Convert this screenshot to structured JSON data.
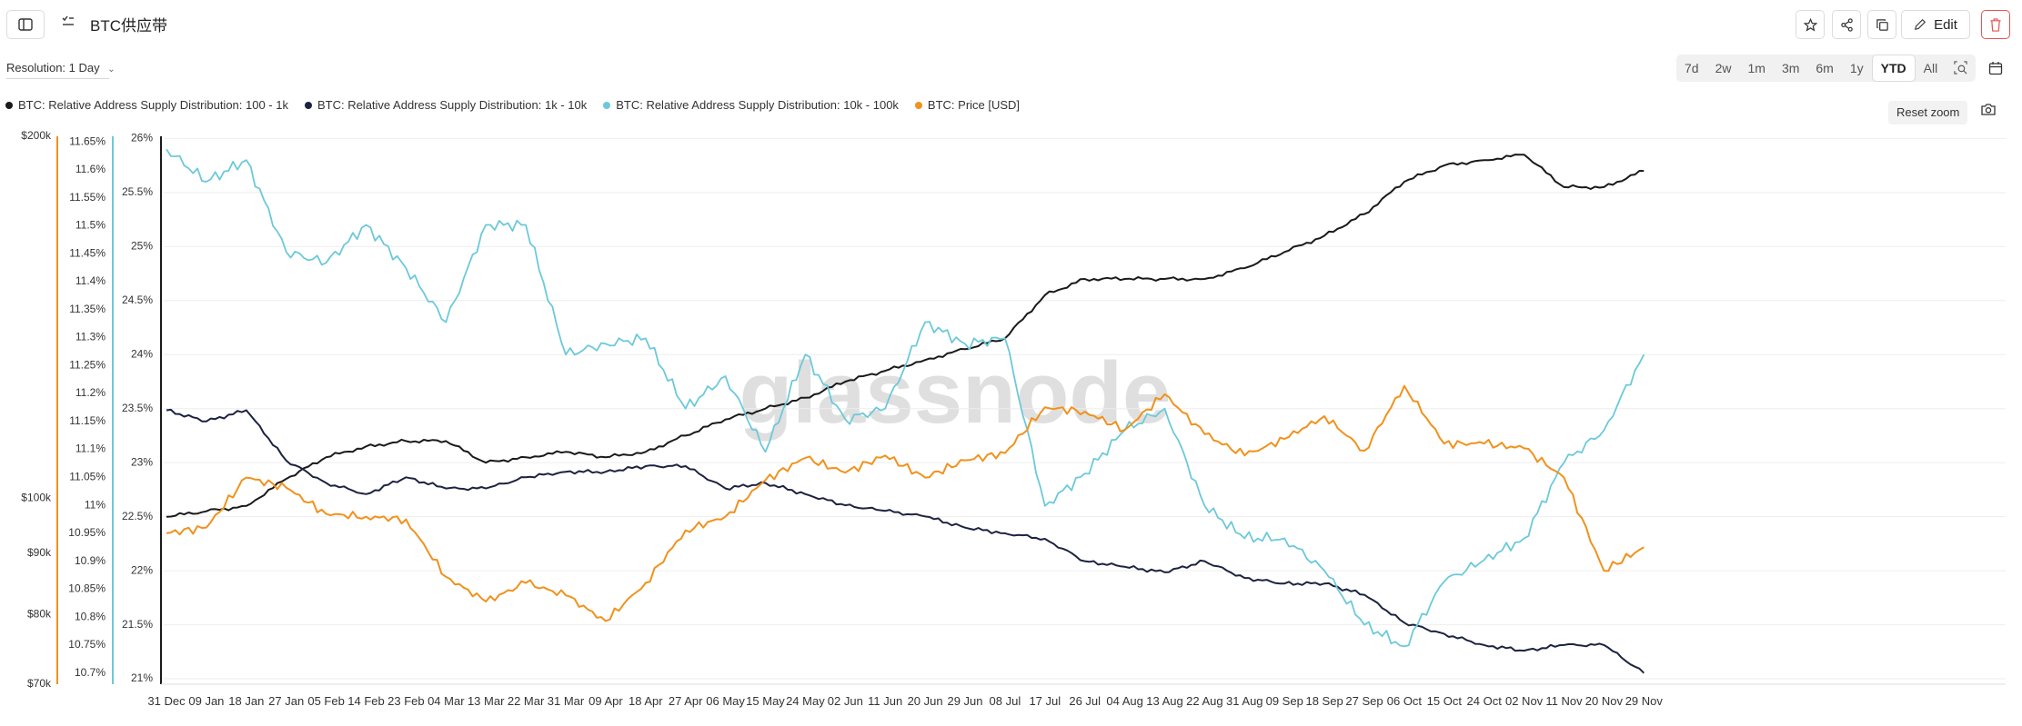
{
  "header": {
    "title": "BTC供应带",
    "edit_label": "Edit"
  },
  "toolbar": {
    "resolution_label": "Resolution: 1 Day",
    "ranges": [
      "7d",
      "2w",
      "1m",
      "3m",
      "6m",
      "1y",
      "YTD",
      "All"
    ],
    "active_range": "YTD",
    "reset_zoom_label": "Reset zoom"
  },
  "legend": [
    {
      "name": "BTC: Relative Address Supply Distribution: 100 - 1k",
      "color": "#1a1a1a"
    },
    {
      "name": "BTC: Relative Address Supply Distribution: 1k - 10k",
      "color": "#1c2340"
    },
    {
      "name": "BTC: Relative Address Supply Distribution: 10k - 100k",
      "color": "#6cc9da"
    },
    {
      "name": "BTC: Price [USD]",
      "color": "#f0921d"
    }
  ],
  "watermark": "glassnode",
  "chart_data": {
    "type": "line",
    "x_ticks": [
      "31 Dec",
      "09 Jan",
      "18 Jan",
      "27 Jan",
      "05 Feb",
      "14 Feb",
      "23 Feb",
      "04 Mar",
      "13 Mar",
      "22 Mar",
      "31 Mar",
      "09 Apr",
      "18 Apr",
      "27 Apr",
      "06 May",
      "15 May",
      "24 May",
      "02 Jun",
      "11 Jun",
      "20 Jun",
      "29 Jun",
      "08 Jul",
      "17 Jul",
      "26 Jul",
      "04 Aug",
      "13 Aug",
      "22 Aug",
      "31 Aug",
      "09 Sep",
      "18 Sep",
      "27 Sep",
      "06 Oct",
      "15 Oct",
      "24 Oct",
      "02 Nov",
      "11 Nov",
      "20 Nov",
      "29 Nov"
    ],
    "axes": {
      "price": {
        "ticks": [
          "$70k",
          "$80k",
          "$90k",
          "$100k",
          "$200k"
        ],
        "range": [
          70000,
          200000
        ],
        "scale": "log",
        "color": "#f0921d"
      },
      "band_1k_10k": {
        "ticks": [
          "10.7%",
          "10.75%",
          "10.8%",
          "10.85%",
          "10.9%",
          "10.95%",
          "11%",
          "11.05%",
          "11.1%",
          "11.15%",
          "11.2%",
          "11.25%",
          "11.3%",
          "11.35%",
          "11.4%",
          "11.45%",
          "11.5%",
          "11.55%",
          "11.6%",
          "11.65%"
        ],
        "range": [
          10.68,
          11.66
        ],
        "color": "#6cc9da"
      },
      "band_100_1k": {
        "ticks": [
          "21%",
          "21.5%",
          "22%",
          "22.5%",
          "23%",
          "23.5%",
          "24%",
          "24.5%",
          "25%",
          "25.5%",
          "26%"
        ],
        "range": [
          20.95,
          26.02
        ]
      }
    },
    "series": [
      {
        "name": "BTC: Relative Address Supply Distribution: 100 - 1k",
        "axis": "band_100_1k",
        "color": "#1a1a1a",
        "points": [
          [
            "31 Dec",
            22.5
          ],
          [
            "09 Jan",
            22.55
          ],
          [
            "18 Jan",
            22.6
          ],
          [
            "27 Jan",
            22.85
          ],
          [
            "05 Feb",
            23.05
          ],
          [
            "14 Feb",
            23.15
          ],
          [
            "23 Feb",
            23.2
          ],
          [
            "04 Mar",
            23.2
          ],
          [
            "13 Mar",
            23.0
          ],
          [
            "22 Mar",
            23.05
          ],
          [
            "31 Mar",
            23.1
          ],
          [
            "09 Apr",
            23.05
          ],
          [
            "18 Apr",
            23.1
          ],
          [
            "27 Apr",
            23.25
          ],
          [
            "06 May",
            23.4
          ],
          [
            "15 May",
            23.5
          ],
          [
            "24 May",
            23.6
          ],
          [
            "02 Jun",
            23.75
          ],
          [
            "11 Jun",
            23.85
          ],
          [
            "20 Jun",
            23.95
          ],
          [
            "29 Jun",
            24.05
          ],
          [
            "08 Jul",
            24.15
          ],
          [
            "17 Jul",
            24.55
          ],
          [
            "26 Jul",
            24.7
          ],
          [
            "04 Aug",
            24.7
          ],
          [
            "13 Aug",
            24.7
          ],
          [
            "22 Aug",
            24.7
          ],
          [
            "31 Aug",
            24.8
          ],
          [
            "09 Sep",
            24.95
          ],
          [
            "18 Sep",
            25.1
          ],
          [
            "27 Sep",
            25.3
          ],
          [
            "06 Oct",
            25.6
          ],
          [
            "15 Oct",
            25.75
          ],
          [
            "24 Oct",
            25.8
          ],
          [
            "02 Nov",
            25.85
          ],
          [
            "11 Nov",
            25.55
          ],
          [
            "20 Nov",
            25.55
          ],
          [
            "29 Nov",
            25.7
          ]
        ]
      },
      {
        "name": "BTC: Relative Address Supply Distribution: 1k - 10k",
        "axis": "band_1k_10k",
        "color": "#1c2340",
        "points": [
          [
            "31 Dec",
            11.17
          ],
          [
            "09 Jan",
            11.15
          ],
          [
            "18 Jan",
            11.17
          ],
          [
            "27 Jan",
            11.08
          ],
          [
            "05 Feb",
            11.04
          ],
          [
            "14 Feb",
            11.02
          ],
          [
            "23 Feb",
            11.05
          ],
          [
            "04 Mar",
            11.03
          ],
          [
            "13 Mar",
            11.03
          ],
          [
            "22 Mar",
            11.05
          ],
          [
            "31 Mar",
            11.06
          ],
          [
            "09 Apr",
            11.06
          ],
          [
            "18 Apr",
            11.07
          ],
          [
            "27 Apr",
            11.07
          ],
          [
            "06 May",
            11.03
          ],
          [
            "15 May",
            11.04
          ],
          [
            "24 May",
            11.02
          ],
          [
            "02 Jun",
            11.0
          ],
          [
            "11 Jun",
            10.99
          ],
          [
            "20 Jun",
            10.98
          ],
          [
            "29 Jun",
            10.96
          ],
          [
            "08 Jul",
            10.95
          ],
          [
            "17 Jul",
            10.94
          ],
          [
            "26 Jul",
            10.9
          ],
          [
            "04 Aug",
            10.89
          ],
          [
            "13 Aug",
            10.88
          ],
          [
            "22 Aug",
            10.9
          ],
          [
            "31 Aug",
            10.87
          ],
          [
            "09 Sep",
            10.86
          ],
          [
            "18 Sep",
            10.86
          ],
          [
            "27 Sep",
            10.84
          ],
          [
            "06 Oct",
            10.79
          ],
          [
            "15 Oct",
            10.77
          ],
          [
            "24 Oct",
            10.75
          ],
          [
            "02 Nov",
            10.74
          ],
          [
            "11 Nov",
            10.75
          ],
          [
            "20 Nov",
            10.75
          ],
          [
            "29 Nov",
            10.7
          ]
        ]
      },
      {
        "name": "BTC: Relative Address Supply Distribution: 10k - 100k",
        "axis": "band_100_1k",
        "color": "#6cc9da",
        "points": [
          [
            "31 Dec",
            25.9
          ],
          [
            "09 Jan",
            25.6
          ],
          [
            "18 Jan",
            25.8
          ],
          [
            "27 Jan",
            24.95
          ],
          [
            "05 Feb",
            24.85
          ],
          [
            "14 Feb",
            25.2
          ],
          [
            "23 Feb",
            24.8
          ],
          [
            "04 Mar",
            24.3
          ],
          [
            "13 Mar",
            25.2
          ],
          [
            "22 Mar",
            25.2
          ],
          [
            "31 Mar",
            24.0
          ],
          [
            "09 Apr",
            24.1
          ],
          [
            "18 Apr",
            24.15
          ],
          [
            "27 Apr",
            23.5
          ],
          [
            "06 May",
            23.8
          ],
          [
            "15 May",
            23.1
          ],
          [
            "24 May",
            24.0
          ],
          [
            "02 Jun",
            23.4
          ],
          [
            "11 Jun",
            23.5
          ],
          [
            "20 Jun",
            24.3
          ],
          [
            "29 Jun",
            24.1
          ],
          [
            "08 Jul",
            24.15
          ],
          [
            "17 Jul",
            22.6
          ],
          [
            "26 Jul",
            22.9
          ],
          [
            "04 Aug",
            23.3
          ],
          [
            "13 Aug",
            23.5
          ],
          [
            "22 Aug",
            22.6
          ],
          [
            "31 Aug",
            22.3
          ],
          [
            "09 Sep",
            22.3
          ],
          [
            "18 Sep",
            22.0
          ],
          [
            "27 Sep",
            21.5
          ],
          [
            "06 Oct",
            21.3
          ],
          [
            "15 Oct",
            21.9
          ],
          [
            "24 Oct",
            22.1
          ],
          [
            "02 Nov",
            22.3
          ],
          [
            "11 Nov",
            23.0
          ],
          [
            "20 Nov",
            23.3
          ],
          [
            "29 Nov",
            24.0
          ]
        ]
      },
      {
        "name": "BTC: Price [USD]",
        "axis": "price",
        "color": "#f0921d",
        "points": [
          [
            "31 Dec",
            93500
          ],
          [
            "09 Jan",
            94500
          ],
          [
            "18 Jan",
            104000
          ],
          [
            "27 Jan",
            102000
          ],
          [
            "05 Feb",
            97000
          ],
          [
            "14 Feb",
            96500
          ],
          [
            "23 Feb",
            96000
          ],
          [
            "04 Mar",
            86000
          ],
          [
            "13 Mar",
            82000
          ],
          [
            "22 Mar",
            85000
          ],
          [
            "31 Mar",
            83000
          ],
          [
            "09 Apr",
            79000
          ],
          [
            "18 Apr",
            85000
          ],
          [
            "27 Apr",
            94000
          ],
          [
            "06 May",
            96500
          ],
          [
            "15 May",
            103500
          ],
          [
            "24 May",
            108000
          ],
          [
            "02 Jun",
            105000
          ],
          [
            "11 Jun",
            108500
          ],
          [
            "20 Jun",
            104000
          ],
          [
            "29 Jun",
            107500
          ],
          [
            "08 Jul",
            109000
          ],
          [
            "17 Jul",
            119000
          ],
          [
            "26 Jul",
            118000
          ],
          [
            "04 Aug",
            114000
          ],
          [
            "13 Aug",
            122000
          ],
          [
            "22 Aug",
            113000
          ],
          [
            "31 Aug",
            108500
          ],
          [
            "09 Sep",
            112000
          ],
          [
            "18 Sep",
            117000
          ],
          [
            "27 Sep",
            109500
          ],
          [
            "06 Oct",
            124000
          ],
          [
            "15 Oct",
            111000
          ],
          [
            "24 Oct",
            111000
          ],
          [
            "02 Nov",
            110000
          ],
          [
            "11 Nov",
            104000
          ],
          [
            "20 Nov",
            87000
          ],
          [
            "29 Nov",
            91000
          ]
        ]
      }
    ]
  }
}
